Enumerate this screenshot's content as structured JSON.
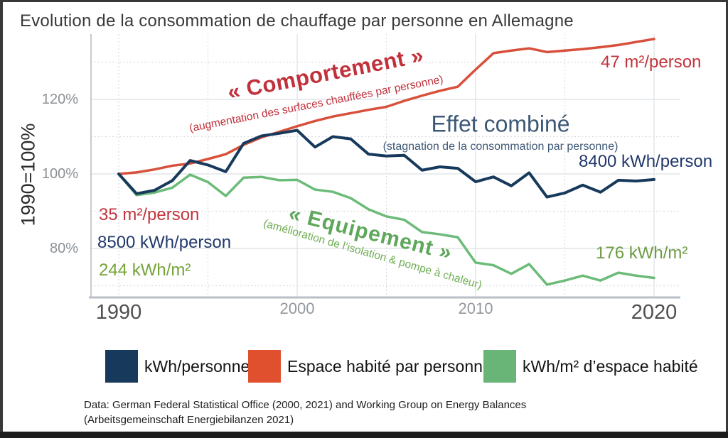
{
  "title": "Evolution de la consommation de chauffage par personne en Allemagne",
  "chart_data": {
    "type": "line",
    "title": "Evolution de la consommation de chauffage par personne en Allemagne",
    "ylabel": "1990=100%",
    "xlim": [
      1990,
      2020
    ],
    "ylim": [
      66,
      138
    ],
    "grid": {
      "y_solid": [
        80,
        100,
        120
      ],
      "y_dotted": [
        70,
        90,
        110,
        130
      ],
      "x_solid": [
        2000,
        2010,
        2020
      ],
      "x_dotted": [
        1990,
        1995,
        2005,
        2015
      ]
    },
    "y_ticks": [
      {
        "value": 120,
        "label": "120%"
      },
      {
        "value": 100,
        "label": "100%"
      },
      {
        "value": 80,
        "label": "80%"
      }
    ],
    "x_ticks": [
      {
        "value": 1990,
        "label": "1990",
        "major": true
      },
      {
        "value": 2000,
        "label": "2000",
        "major": false
      },
      {
        "value": 2010,
        "label": "2010",
        "major": false
      },
      {
        "value": 2020,
        "label": "2020",
        "major": true
      }
    ],
    "years": [
      1990,
      1991,
      1992,
      1993,
      1994,
      1995,
      1996,
      1997,
      1998,
      1999,
      2000,
      2001,
      2002,
      2003,
      2004,
      2005,
      2006,
      2007,
      2008,
      2009,
      2010,
      2011,
      2012,
      2013,
      2014,
      2015,
      2016,
      2017,
      2018,
      2019,
      2020
    ],
    "series": [
      {
        "name": "Espace habité par personne",
        "dom_id": "line-espace",
        "color": "#d8503b",
        "values": [
          100,
          100.4,
          101.2,
          102.2,
          102.8,
          104,
          105.3,
          107.8,
          109.8,
          111.3,
          112.8,
          114.2,
          115.4,
          116.3,
          117.2,
          118,
          119.6,
          121,
          122.3,
          123.4,
          128,
          132.4,
          133.1,
          133.7,
          132.7,
          133.1,
          133.5,
          134,
          134.6,
          135.4,
          136.2
        ]
      },
      {
        "name": "kWh/m² d'espace habité",
        "dom_id": "line-kwhm2",
        "color": "#6cbb78",
        "values": [
          100,
          94.3,
          95,
          96.3,
          99.8,
          97.8,
          94.1,
          99,
          99.2,
          98.3,
          98.4,
          95.8,
          95.2,
          93.5,
          90.5,
          88.6,
          87.7,
          84.4,
          83.8,
          83,
          76.2,
          75.5,
          73.2,
          75.8,
          70.3,
          71.4,
          72.7,
          71.4,
          73.5,
          72.7,
          72.1
        ]
      },
      {
        "name": "kWh/personne",
        "dom_id": "line-kwhpers",
        "color": "#16395c",
        "values": [
          100,
          94.7,
          95.6,
          98.2,
          103.6,
          102.4,
          100.6,
          108.2,
          110.2,
          110.9,
          111.7,
          107.2,
          110,
          109.4,
          105.3,
          104.8,
          105,
          101,
          101.9,
          101.5,
          97.9,
          99.2,
          96.8,
          100.3,
          93.8,
          94.9,
          97,
          95.1,
          98.3,
          98.1,
          98.5
        ]
      }
    ],
    "legend_position": "bottom"
  },
  "annotations": {
    "comportement_title": "« Comportement »",
    "comportement_sub": "(augmentation des surfaces chauffées par personne)",
    "effet_title": "Effet combiné",
    "effet_sub": "(stagnation de la consommation par personne)",
    "equipement_title": "« Equipement »",
    "equipement_sub": "(amélioration de l’isolation & pompe à chaleur)",
    "start_espace": "35 m²/person",
    "start_kwh_personne": "8500 kWh/person",
    "start_kwh_m2": "244 kWh/m²",
    "end_espace": "47 m²/person",
    "end_kwh_personne": "8400 kWh/person",
    "end_kwh_m2": "176 kWh/m²"
  },
  "legend": {
    "items": [
      {
        "label": "kWh/personne",
        "color": "#17395c"
      },
      {
        "label": "Espace habité par personne",
        "color": "#e0502e"
      },
      {
        "label": "kWh/m² d’espace habité",
        "color": "#68b577"
      }
    ]
  },
  "source": {
    "line1": "Data:  German Federal Statistical Office (2000, 2021) and Working Group on Energy Balances",
    "line2": "(Arbeitsgemeinschaft Energiebilanzen 2021)"
  }
}
